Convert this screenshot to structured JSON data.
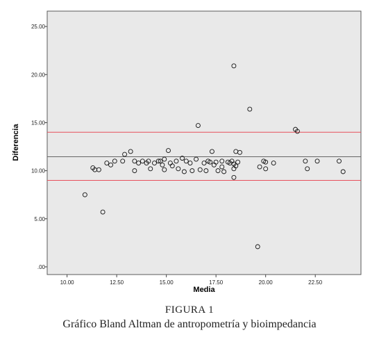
{
  "caption": {
    "figure_number": "FIGURA 1",
    "title": "Gráfico Bland Altman de antropometría y bioimpedancia"
  },
  "chart_data": {
    "type": "scatter",
    "xlabel": "Media",
    "ylabel": "Diferencia",
    "xlim": [
      9.0,
      24.8
    ],
    "ylim": [
      -0.8,
      26.6
    ],
    "x_ticks": [
      "10.00",
      "12.50",
      "15.00",
      "17.50",
      "20.00",
      "22.50"
    ],
    "x_tick_values": [
      10,
      12.5,
      15,
      17.5,
      20,
      22.5
    ],
    "y_ticks": [
      ".00",
      "5.00",
      "10.00",
      "15.00",
      "20.00",
      "25.00"
    ],
    "y_tick_values": [
      0,
      5,
      10,
      15,
      20,
      25
    ],
    "grid": false,
    "background_color": "#e9e9e9",
    "reference_lines": [
      {
        "y": 14.0,
        "color": "#e8505b"
      },
      {
        "y": 11.45,
        "color": "#666666"
      },
      {
        "y": 9.0,
        "color": "#e8505b"
      }
    ],
    "points": [
      [
        10.9,
        7.5
      ],
      [
        11.3,
        10.3
      ],
      [
        11.4,
        10.1
      ],
      [
        11.6,
        10.1
      ],
      [
        11.8,
        5.7
      ],
      [
        12.0,
        10.8
      ],
      [
        12.2,
        10.6
      ],
      [
        12.4,
        11.0
      ],
      [
        12.8,
        11.0
      ],
      [
        12.9,
        11.7
      ],
      [
        13.2,
        12.0
      ],
      [
        13.4,
        11.0
      ],
      [
        13.4,
        10.0
      ],
      [
        13.6,
        10.8
      ],
      [
        13.8,
        11.0
      ],
      [
        14.0,
        10.8
      ],
      [
        14.1,
        11.0
      ],
      [
        14.2,
        10.2
      ],
      [
        14.4,
        10.8
      ],
      [
        14.6,
        11.0
      ],
      [
        14.7,
        11.0
      ],
      [
        14.8,
        10.6
      ],
      [
        14.9,
        10.1
      ],
      [
        14.9,
        11.2
      ],
      [
        15.1,
        12.1
      ],
      [
        15.2,
        10.8
      ],
      [
        15.3,
        10.5
      ],
      [
        15.5,
        11.0
      ],
      [
        15.6,
        10.2
      ],
      [
        15.8,
        11.3
      ],
      [
        15.9,
        9.9
      ],
      [
        16.0,
        11.0
      ],
      [
        16.2,
        10.8
      ],
      [
        16.3,
        10.0
      ],
      [
        16.5,
        11.2
      ],
      [
        16.6,
        14.7
      ],
      [
        16.7,
        10.1
      ],
      [
        16.9,
        10.8
      ],
      [
        17.0,
        10.0
      ],
      [
        17.1,
        11.0
      ],
      [
        17.2,
        10.9
      ],
      [
        17.3,
        12.0
      ],
      [
        17.4,
        10.6
      ],
      [
        17.5,
        10.9
      ],
      [
        17.6,
        10.0
      ],
      [
        17.8,
        11.0
      ],
      [
        17.8,
        10.4
      ],
      [
        17.9,
        9.9
      ],
      [
        18.1,
        10.9
      ],
      [
        18.2,
        10.8
      ],
      [
        18.3,
        11.0
      ],
      [
        18.4,
        10.7
      ],
      [
        18.4,
        10.2
      ],
      [
        18.4,
        9.3
      ],
      [
        18.4,
        20.9
      ],
      [
        18.5,
        12.0
      ],
      [
        18.5,
        10.5
      ],
      [
        18.6,
        10.9
      ],
      [
        18.7,
        11.9
      ],
      [
        19.2,
        16.4
      ],
      [
        19.6,
        2.1
      ],
      [
        19.7,
        10.4
      ],
      [
        19.9,
        11.0
      ],
      [
        20.0,
        10.2
      ],
      [
        20.0,
        10.9
      ],
      [
        20.4,
        10.8
      ],
      [
        21.5,
        14.3
      ],
      [
        21.6,
        14.1
      ],
      [
        22.0,
        11.0
      ],
      [
        22.1,
        10.2
      ],
      [
        22.6,
        11.0
      ],
      [
        23.7,
        11.0
      ],
      [
        23.9,
        9.9
      ]
    ]
  }
}
